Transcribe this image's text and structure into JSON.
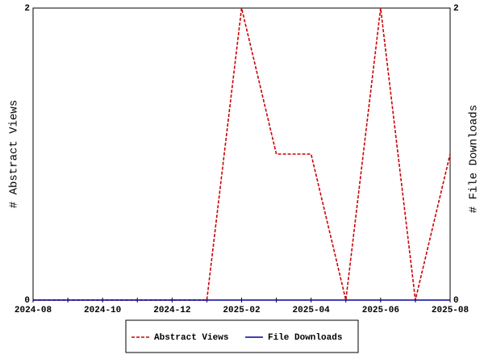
{
  "chart_data": {
    "type": "line",
    "categories": [
      "2024-08",
      null,
      "2024-10",
      null,
      "2024-12",
      null,
      "2025-02",
      null,
      "2025-04",
      null,
      "2025-06",
      null,
      "2025-08"
    ],
    "y_label": "# Abstract Views",
    "y2_label": "# File Downloads",
    "ylim": [
      0,
      2
    ],
    "yticks": [
      0,
      2
    ],
    "y2lim": [
      0,
      2
    ],
    "y2ticks": [
      0,
      2
    ],
    "series": [
      {
        "name": "Abstract Views",
        "color": "#cc0000",
        "dashed": true,
        "values": [
          0,
          0,
          0,
          0,
          0,
          0,
          2,
          1,
          1,
          0,
          2,
          0,
          1
        ]
      },
      {
        "name": "File Downloads",
        "color": "#000099",
        "axis": "y2",
        "values": [
          0,
          0,
          0,
          0,
          0,
          0,
          0,
          0,
          0,
          0,
          0,
          0,
          0
        ]
      }
    ],
    "legend": "bottom"
  }
}
